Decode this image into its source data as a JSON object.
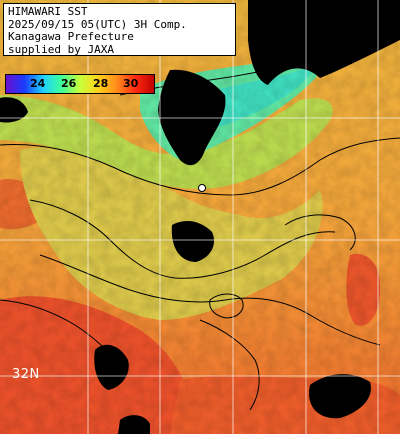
{
  "caption": {
    "line1": "HIMAWARI SST",
    "line2": "2025/09/15 05(UTC) 3H Comp.",
    "line3": "Kanagawa Prefecture",
    "line4": "supplied by JAXA"
  },
  "colorbar": {
    "ticks": [
      "24",
      "26",
      "28",
      "30"
    ],
    "colors": [
      "#6a0fd0",
      "#1a3cff",
      "#1fd0ff",
      "#3dff9a",
      "#c8ff3a",
      "#ffd21a",
      "#ff8a1a",
      "#ff2a10",
      "#c00000"
    ]
  },
  "graticule": {
    "lat_label": "32N"
  },
  "palette": {
    "land_cloud": "#000000",
    "cold": "#5fe3a0",
    "mid": "#c8e85a",
    "warm": "#f0a33a",
    "hot": "#e8502a",
    "contour": "#000000",
    "grid": "#ffffff"
  }
}
